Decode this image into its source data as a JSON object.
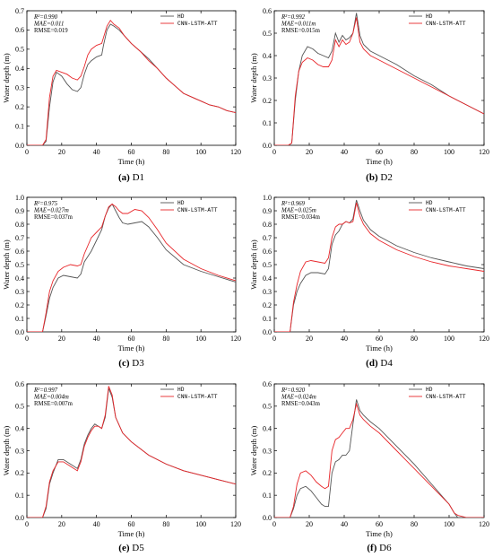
{
  "colors": {
    "hd": "#555555",
    "model": "#e8262a"
  },
  "chart_data": [
    {
      "type": "line",
      "caption_bold": "(a)",
      "caption_rest": " D1",
      "xlabel": "Time (h)",
      "ylabel": "Water depth (m)",
      "xlim": [
        0,
        120
      ],
      "ylim": [
        0,
        0.7
      ],
      "xticks": [
        0,
        20,
        40,
        60,
        80,
        100,
        120
      ],
      "yticks": [
        0.0,
        0.1,
        0.2,
        0.3,
        0.4,
        0.5,
        0.6,
        0.7
      ],
      "metrics": [
        "R²=0.990",
        "MAE=0.011",
        "RMSE=0.019"
      ],
      "legend": [
        "HD",
        "CNN-LSTM-ATT"
      ],
      "series": [
        {
          "name": "HD",
          "x": [
            0,
            9,
            11,
            13,
            15,
            17,
            20,
            23,
            26,
            29,
            31,
            33,
            35,
            37,
            40,
            43,
            44,
            46,
            48,
            50,
            53,
            56,
            60,
            65,
            70,
            75,
            80,
            85,
            90,
            95,
            100,
            105,
            110,
            115,
            120
          ],
          "y": [
            0,
            0,
            0.02,
            0.2,
            0.33,
            0.38,
            0.36,
            0.32,
            0.29,
            0.28,
            0.3,
            0.37,
            0.42,
            0.44,
            0.46,
            0.47,
            0.52,
            0.6,
            0.63,
            0.62,
            0.6,
            0.57,
            0.53,
            0.49,
            0.45,
            0.4,
            0.35,
            0.31,
            0.27,
            0.25,
            0.23,
            0.21,
            0.2,
            0.18,
            0.17
          ]
        },
        {
          "name": "CNN-LSTM-ATT",
          "x": [
            0,
            9,
            11,
            13,
            15,
            17,
            20,
            23,
            26,
            29,
            31,
            33,
            35,
            37,
            40,
            43,
            44,
            46,
            48,
            50,
            53,
            56,
            60,
            65,
            70,
            75,
            80,
            85,
            90,
            95,
            100,
            105,
            110,
            115,
            120
          ],
          "y": [
            0,
            0,
            0.03,
            0.25,
            0.36,
            0.39,
            0.38,
            0.37,
            0.35,
            0.34,
            0.36,
            0.41,
            0.47,
            0.5,
            0.52,
            0.53,
            0.56,
            0.62,
            0.65,
            0.63,
            0.61,
            0.57,
            0.53,
            0.49,
            0.44,
            0.4,
            0.35,
            0.31,
            0.27,
            0.25,
            0.23,
            0.21,
            0.2,
            0.18,
            0.17
          ]
        }
      ]
    },
    {
      "type": "line",
      "caption_bold": "(b)",
      "caption_rest": " D2",
      "xlabel": "Time (h)",
      "ylabel": "Water depth (m)",
      "xlim": [
        0,
        120
      ],
      "ylim": [
        0,
        0.6
      ],
      "xticks": [
        0,
        20,
        40,
        60,
        80,
        100,
        120
      ],
      "yticks": [
        0.0,
        0.1,
        0.2,
        0.3,
        0.4,
        0.5,
        0.6
      ],
      "metrics": [
        "R²=0.992",
        "MAE=0.011m",
        "RMSE=0.015m"
      ],
      "legend": [
        "HD",
        "CNN-LSTM-ATT"
      ],
      "series": [
        {
          "name": "HD",
          "x": [
            0,
            8,
            10,
            12,
            14,
            16,
            19,
            22,
            25,
            28,
            31,
            33,
            35,
            37,
            39,
            41,
            43,
            45,
            47,
            49,
            51,
            55,
            60,
            70,
            80,
            90,
            100,
            110,
            120
          ],
          "y": [
            0,
            0,
            0.01,
            0.2,
            0.33,
            0.4,
            0.44,
            0.43,
            0.41,
            0.4,
            0.39,
            0.42,
            0.5,
            0.46,
            0.49,
            0.47,
            0.48,
            0.5,
            0.59,
            0.49,
            0.45,
            0.42,
            0.4,
            0.36,
            0.31,
            0.27,
            0.22,
            0.18,
            0.14
          ]
        },
        {
          "name": "CNN-LSTM-ATT",
          "x": [
            0,
            8,
            10,
            12,
            14,
            16,
            19,
            22,
            25,
            28,
            31,
            33,
            35,
            37,
            39,
            41,
            43,
            45,
            47,
            49,
            51,
            55,
            60,
            70,
            80,
            90,
            100,
            110,
            120
          ],
          "y": [
            0,
            0,
            0.01,
            0.22,
            0.33,
            0.37,
            0.39,
            0.38,
            0.36,
            0.35,
            0.35,
            0.38,
            0.47,
            0.44,
            0.47,
            0.45,
            0.46,
            0.5,
            0.57,
            0.46,
            0.43,
            0.4,
            0.38,
            0.34,
            0.3,
            0.26,
            0.22,
            0.18,
            0.14
          ]
        }
      ]
    },
    {
      "type": "line",
      "caption_bold": "(c)",
      "caption_rest": " D3",
      "xlabel": "Time (h)",
      "ylabel": "Water depth (m)",
      "xlim": [
        0,
        120
      ],
      "ylim": [
        0,
        1.0
      ],
      "xticks": [
        0,
        20,
        40,
        60,
        80,
        100,
        120
      ],
      "yticks": [
        0.0,
        0.1,
        0.2,
        0.3,
        0.4,
        0.5,
        0.6,
        0.7,
        0.8,
        0.9,
        1.0
      ],
      "metrics": [
        "R²=0.975",
        "MAE=0.027m",
        "RMSE=0.037m"
      ],
      "legend": [
        "HD",
        "CNN-LSTM-ATT"
      ],
      "series": [
        {
          "name": "HD",
          "x": [
            0,
            9,
            11,
            13,
            15,
            18,
            21,
            25,
            29,
            31,
            33,
            35,
            37,
            40,
            43,
            45,
            47,
            49,
            51,
            53,
            55,
            58,
            62,
            66,
            70,
            75,
            80,
            90,
            100,
            110,
            120
          ],
          "y": [
            0,
            0,
            0.12,
            0.25,
            0.33,
            0.4,
            0.42,
            0.41,
            0.4,
            0.43,
            0.52,
            0.56,
            0.6,
            0.68,
            0.76,
            0.86,
            0.92,
            0.95,
            0.9,
            0.85,
            0.81,
            0.8,
            0.81,
            0.82,
            0.78,
            0.7,
            0.61,
            0.5,
            0.45,
            0.41,
            0.37
          ]
        },
        {
          "name": "CNN-LSTM-ATT",
          "x": [
            0,
            9,
            11,
            13,
            15,
            18,
            21,
            25,
            29,
            31,
            33,
            35,
            37,
            40,
            43,
            45,
            47,
            49,
            51,
            53,
            55,
            58,
            62,
            66,
            70,
            75,
            80,
            90,
            100,
            110,
            120
          ],
          "y": [
            0,
            0,
            0.14,
            0.3,
            0.38,
            0.45,
            0.48,
            0.5,
            0.49,
            0.5,
            0.58,
            0.64,
            0.7,
            0.74,
            0.78,
            0.86,
            0.93,
            0.95,
            0.93,
            0.9,
            0.88,
            0.88,
            0.91,
            0.9,
            0.85,
            0.76,
            0.66,
            0.54,
            0.47,
            0.42,
            0.38
          ]
        }
      ]
    },
    {
      "type": "line",
      "caption_bold": "(d)",
      "caption_rest": " D4",
      "xlabel": "Time (h)",
      "ylabel": "Water depth (m)",
      "xlim": [
        0,
        120
      ],
      "ylim": [
        0,
        1.0
      ],
      "xticks": [
        0,
        20,
        40,
        60,
        80,
        100,
        120
      ],
      "yticks": [
        0.0,
        0.1,
        0.2,
        0.3,
        0.4,
        0.5,
        0.6,
        0.7,
        0.8,
        0.9,
        1.0
      ],
      "metrics": [
        "R²=0.969",
        "MAE=0.025m",
        "RMSE=0.034m"
      ],
      "legend": [
        "HD",
        "CNN-LSTM-ATT"
      ],
      "series": [
        {
          "name": "HD",
          "x": [
            0,
            9,
            11,
            13,
            15,
            18,
            21,
            25,
            29,
            31,
            33,
            35,
            37,
            39,
            41,
            43,
            45,
            47,
            49,
            51,
            55,
            60,
            70,
            80,
            90,
            100,
            110,
            120
          ],
          "y": [
            0,
            0,
            0.2,
            0.3,
            0.36,
            0.42,
            0.44,
            0.44,
            0.43,
            0.47,
            0.65,
            0.72,
            0.75,
            0.8,
            0.82,
            0.81,
            0.84,
            0.98,
            0.9,
            0.83,
            0.76,
            0.71,
            0.64,
            0.59,
            0.55,
            0.52,
            0.49,
            0.47
          ]
        },
        {
          "name": "CNN-LSTM-ATT",
          "x": [
            0,
            9,
            11,
            13,
            15,
            18,
            21,
            25,
            29,
            31,
            33,
            35,
            37,
            39,
            41,
            43,
            45,
            47,
            49,
            51,
            55,
            60,
            70,
            80,
            90,
            100,
            110,
            120
          ],
          "y": [
            0,
            0,
            0.22,
            0.35,
            0.45,
            0.52,
            0.53,
            0.52,
            0.51,
            0.55,
            0.7,
            0.78,
            0.8,
            0.8,
            0.82,
            0.81,
            0.82,
            0.96,
            0.86,
            0.8,
            0.73,
            0.68,
            0.61,
            0.56,
            0.52,
            0.49,
            0.47,
            0.45
          ]
        }
      ]
    },
    {
      "type": "line",
      "caption_bold": "(e)",
      "caption_rest": " D5",
      "xlabel": "Time (h)",
      "ylabel": "Water depth (m)",
      "xlim": [
        0,
        120
      ],
      "ylim": [
        0,
        0.6
      ],
      "xticks": [
        0,
        20,
        40,
        60,
        80,
        100,
        120
      ],
      "yticks": [
        0.0,
        0.1,
        0.2,
        0.3,
        0.4,
        0.5,
        0.6
      ],
      "metrics": [
        "R²=0.997",
        "MAE=0.004m",
        "RMSE=0.007m"
      ],
      "legend": [
        "HD",
        "CNN-LSTM-ATT"
      ],
      "series": [
        {
          "name": "HD",
          "x": [
            0,
            9,
            11,
            13,
            15,
            18,
            21,
            25,
            29,
            31,
            33,
            35,
            37,
            39,
            41,
            43,
            45,
            47,
            49,
            51,
            55,
            60,
            70,
            80,
            90,
            100,
            110,
            120
          ],
          "y": [
            0,
            0,
            0.04,
            0.15,
            0.2,
            0.26,
            0.26,
            0.24,
            0.22,
            0.26,
            0.33,
            0.37,
            0.4,
            0.42,
            0.41,
            0.4,
            0.45,
            0.58,
            0.54,
            0.45,
            0.38,
            0.34,
            0.28,
            0.24,
            0.21,
            0.19,
            0.17,
            0.15
          ]
        },
        {
          "name": "CNN-LSTM-ATT",
          "x": [
            0,
            9,
            11,
            13,
            15,
            18,
            21,
            25,
            29,
            31,
            33,
            35,
            37,
            39,
            41,
            43,
            45,
            47,
            49,
            51,
            55,
            60,
            70,
            80,
            90,
            100,
            110,
            120
          ],
          "y": [
            0,
            0,
            0.05,
            0.16,
            0.21,
            0.25,
            0.25,
            0.23,
            0.21,
            0.25,
            0.32,
            0.36,
            0.39,
            0.41,
            0.41,
            0.4,
            0.46,
            0.59,
            0.55,
            0.45,
            0.38,
            0.34,
            0.28,
            0.24,
            0.21,
            0.19,
            0.17,
            0.15
          ]
        }
      ]
    },
    {
      "type": "line",
      "caption_bold": "(f)",
      "caption_rest": " D6",
      "xlabel": "Time (h)",
      "ylabel": "Water depth (m)",
      "xlim": [
        0,
        120
      ],
      "ylim": [
        0,
        0.6
      ],
      "xticks": [
        0,
        20,
        40,
        60,
        80,
        100,
        120
      ],
      "yticks": [
        0.0,
        0.1,
        0.2,
        0.3,
        0.4,
        0.5,
        0.6
      ],
      "metrics": [
        "R²=0.920",
        "MAE=0.024m",
        "RMSE=0.043m"
      ],
      "legend": [
        "HD",
        "CNN-LSTM-ATT"
      ],
      "series": [
        {
          "name": "HD",
          "x": [
            0,
            9,
            11,
            13,
            15,
            18,
            21,
            24,
            27,
            29,
            31,
            33,
            35,
            37,
            39,
            41,
            43,
            45,
            47,
            49,
            51,
            55,
            60,
            70,
            80,
            90,
            100,
            103,
            105,
            110,
            120
          ],
          "y": [
            0,
            0,
            0.04,
            0.1,
            0.13,
            0.14,
            0.12,
            0.09,
            0.06,
            0.05,
            0.05,
            0.2,
            0.25,
            0.26,
            0.28,
            0.28,
            0.3,
            0.42,
            0.53,
            0.48,
            0.46,
            0.43,
            0.4,
            0.32,
            0.24,
            0.15,
            0.06,
            0.02,
            0,
            0,
            0
          ]
        },
        {
          "name": "CNN-LSTM-ATT",
          "x": [
            0,
            9,
            11,
            13,
            15,
            18,
            21,
            24,
            27,
            29,
            31,
            33,
            35,
            37,
            39,
            41,
            43,
            45,
            47,
            49,
            51,
            55,
            60,
            70,
            80,
            90,
            100,
            103,
            105,
            110,
            120
          ],
          "y": [
            0,
            0,
            0.05,
            0.15,
            0.2,
            0.21,
            0.19,
            0.16,
            0.14,
            0.13,
            0.14,
            0.3,
            0.35,
            0.36,
            0.38,
            0.4,
            0.4,
            0.44,
            0.51,
            0.46,
            0.44,
            0.41,
            0.38,
            0.3,
            0.22,
            0.14,
            0.06,
            0.02,
            0.01,
            0,
            0
          ]
        }
      ]
    }
  ]
}
